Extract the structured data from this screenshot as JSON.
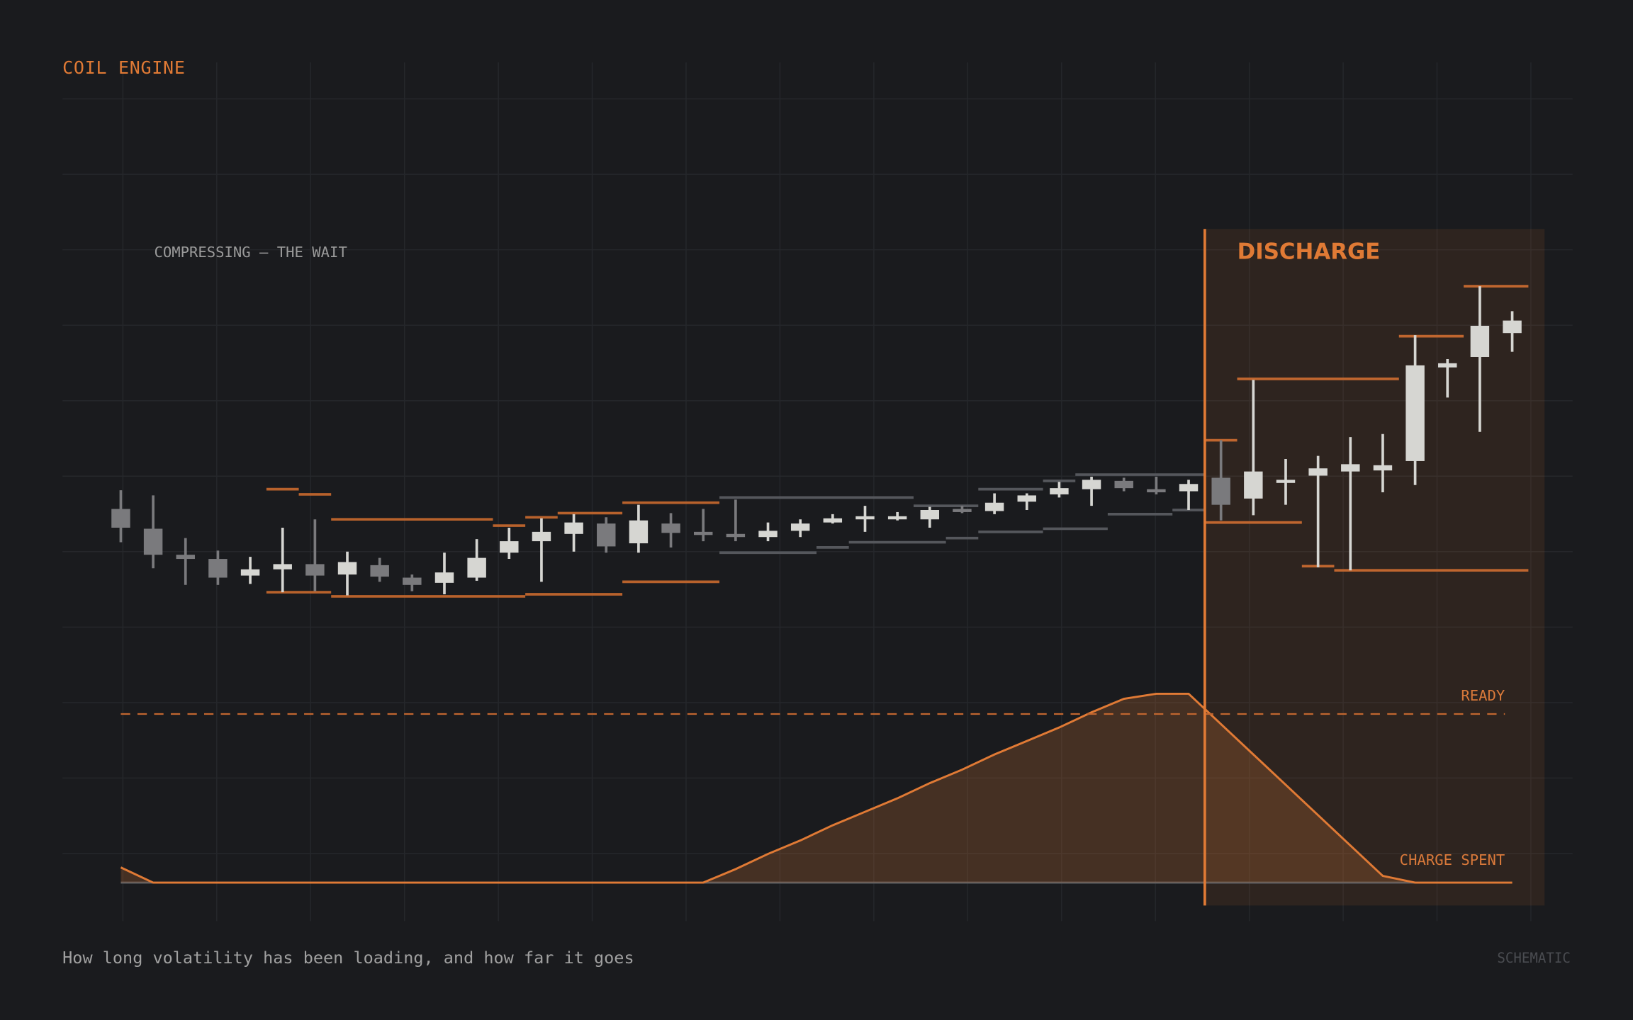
{
  "chart_data": {
    "type": "candlestick",
    "title": "COIL ENGINE",
    "annotation": "COMPRESSING — THE WAIT",
    "subtitle": "How long volatility has been loading, and how far it goes",
    "note": "SCHEMATIC",
    "ylim": [
      0,
      820
    ],
    "grid": true,
    "up_color": "#d6d6d2",
    "down_color": "#7a7a7d",
    "open": [
      391,
      372,
      347,
      343,
      327,
      333,
      338,
      328,
      337,
      325,
      320,
      325,
      349,
      360,
      367,
      377,
      358,
      377,
      369,
      367,
      364,
      370,
      378,
      382,
      382,
      381,
      391,
      389,
      398,
      405,
      410,
      418,
      410,
      408,
      421,
      401,
      417,
      423,
      427,
      428,
      437,
      527,
      537,
      560
    ],
    "high": [
      409,
      404,
      363,
      351,
      345,
      373,
      381,
      350,
      344,
      328,
      349,
      362,
      373,
      382,
      386,
      383,
      395,
      387,
      391,
      400,
      378,
      381,
      386,
      394,
      388,
      393,
      394,
      406,
      406,
      417,
      422,
      421,
      422,
      419,
      457,
      515,
      439,
      442,
      460,
      463,
      558,
      535,
      605,
      581
    ],
    "low": [
      359,
      334,
      318,
      318,
      319,
      311,
      312,
      308,
      321,
      312,
      309,
      322,
      343,
      321,
      350,
      349,
      349,
      354,
      360,
      360,
      360,
      364,
      377,
      369,
      380,
      373,
      387,
      386,
      390,
      402,
      394,
      408,
      405,
      390,
      380,
      385,
      395,
      335,
      332,
      407,
      414,
      498,
      465,
      542
    ],
    "close": [
      373,
      347,
      343,
      325,
      333,
      338,
      327,
      340,
      326,
      318,
      330,
      344,
      360,
      369,
      378,
      355,
      380,
      368,
      366,
      364,
      370,
      377,
      382,
      384,
      384,
      390,
      389,
      397,
      404,
      411,
      419,
      411,
      408,
      415,
      395,
      427,
      419,
      430,
      434,
      433,
      529,
      531,
      567,
      572
    ],
    "levels": [
      {
        "color": "#b8622c",
        "segments": [
          [
            4.5,
            5.5,
            410
          ],
          [
            5.5,
            6.5,
            405
          ],
          [
            4.5,
            6.5,
            311
          ],
          [
            6.5,
            11.5,
            381
          ],
          [
            6.5,
            12.5,
            307
          ],
          [
            11.5,
            12.5,
            375
          ],
          [
            12.5,
            13.5,
            383
          ],
          [
            13.5,
            15.5,
            387
          ],
          [
            12.5,
            15.5,
            309
          ],
          [
            15.5,
            18.5,
            397
          ],
          [
            15.5,
            18.5,
            321
          ]
        ]
      },
      {
        "color": "#55575c",
        "segments": [
          [
            18.5,
            24.5,
            402
          ],
          [
            18.5,
            21.5,
            349
          ],
          [
            21.5,
            22.5,
            354
          ],
          [
            22.5,
            25.5,
            359
          ],
          [
            24.5,
            26.5,
            394
          ],
          [
            25.5,
            26.5,
            363
          ],
          [
            26.5,
            28.5,
            410
          ],
          [
            26.5,
            28.5,
            369
          ],
          [
            28.5,
            29.5,
            418
          ],
          [
            28.5,
            30.5,
            372
          ],
          [
            29.5,
            33.5,
            424
          ],
          [
            30.5,
            32.5,
            386
          ],
          [
            32.5,
            33.5,
            390
          ]
        ]
      },
      {
        "color": "#c0662f",
        "segments": [
          [
            33.5,
            34.5,
            457
          ],
          [
            33.5,
            36.5,
            378
          ],
          [
            34.5,
            39.5,
            516
          ],
          [
            36.5,
            37.5,
            336
          ],
          [
            37.5,
            43.5,
            332
          ],
          [
            39.5,
            41.5,
            557
          ],
          [
            41.5,
            43.5,
            605
          ]
        ]
      }
    ],
    "discharge": {
      "label": "DISCHARGE",
      "from": 33.5,
      "to": 44,
      "color": "#e07a35"
    },
    "charge": {
      "color": "#e07a35",
      "y2lim": [
        0,
        120
      ],
      "values": [
        9,
        0,
        0,
        0,
        0,
        0,
        0,
        0,
        0,
        0,
        0,
        0,
        0,
        0,
        0,
        0,
        0,
        0,
        0,
        8,
        17,
        25,
        34,
        42,
        50,
        59,
        67,
        76,
        84,
        92,
        101,
        109,
        112,
        112,
        94,
        76,
        58,
        40,
        22,
        4,
        0,
        0,
        0,
        0
      ],
      "ready": {
        "label": "READY",
        "value": 100
      },
      "label": "CHARGE SPENT"
    }
  }
}
